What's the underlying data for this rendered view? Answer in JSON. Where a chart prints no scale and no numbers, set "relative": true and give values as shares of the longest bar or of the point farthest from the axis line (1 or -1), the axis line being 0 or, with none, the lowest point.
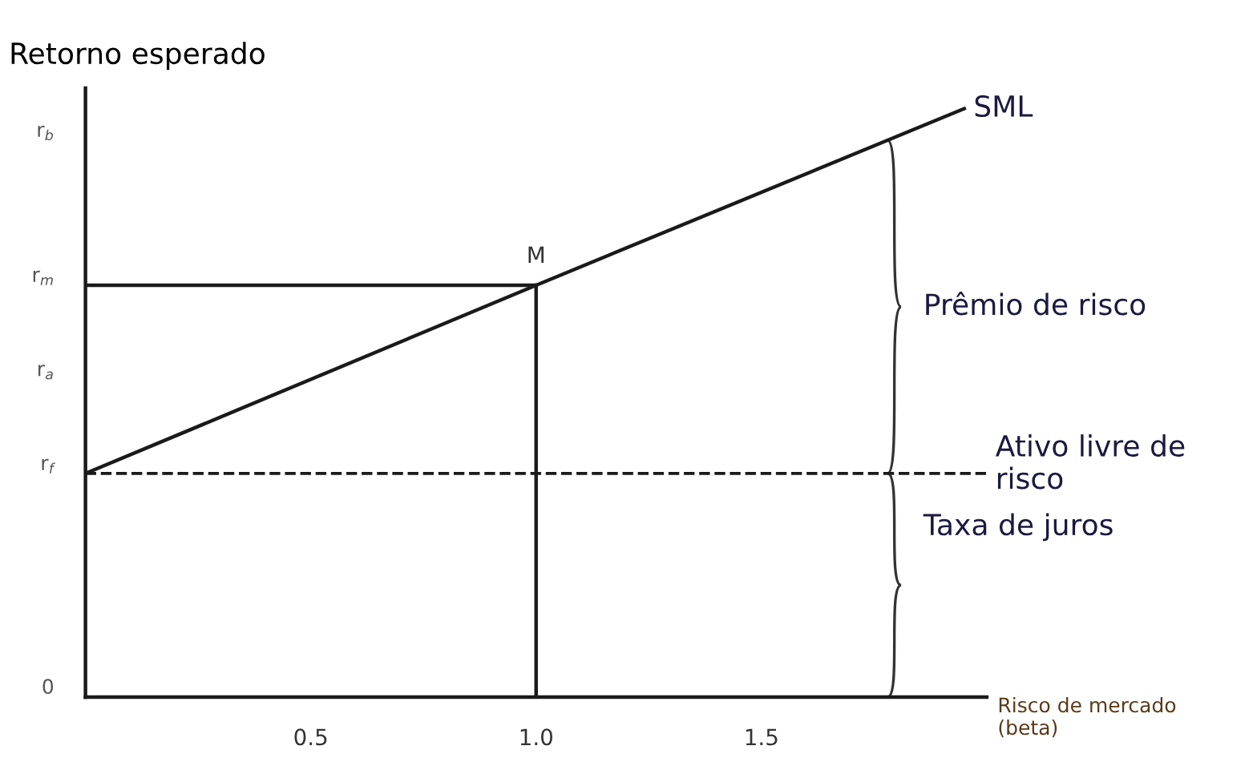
{
  "chart_data": {
    "type": "line",
    "relative": true,
    "xlabel": "Risco de mercado\n(beta)",
    "ylabel": "Retorno esperado",
    "xlim": [
      0,
      2.0
    ],
    "xticks": [
      {
        "value": 0.5,
        "label": "0.5"
      },
      {
        "value": 1.0,
        "label": "1.0"
      },
      {
        "value": 1.5,
        "label": "1.5"
      }
    ],
    "series": [
      {
        "name": "SML",
        "color": "#1a1a1a",
        "x": [
          0,
          1.0,
          1.95
        ],
        "values": [
          0.38,
          0.7,
          1.0
        ]
      },
      {
        "color": "#1a1a1a",
        "x": [
          0,
          1.0
        ],
        "values": [
          0.7,
          0.7
        ]
      },
      {
        "color": "#1a1a1a",
        "x": [
          1.0,
          1.0
        ],
        "values": [
          0,
          0.7
        ]
      }
    ],
    "ref_lines": [
      {
        "axis": "y",
        "value": 0.38,
        "color": "#1a1a1a",
        "line_style": "dashed"
      }
    ],
    "annotations": [
      {
        "text": "r$_{f}$",
        "x": 0,
        "y": 0.38
      },
      {
        "text": "r$_{m}$",
        "x": 0,
        "y": 0.7
      },
      {
        "text": "M",
        "x": 1.0,
        "y": 0.7
      },
      {
        "text": "Ativo livre de\nrisco",
        "x": 1.95,
        "y": 0.38
      },
      "0",
      "r$_{a}$",
      "r$_{b}$",
      "Prêmio de risco",
      "Taxa de juros"
    ],
    "grid": false,
    "legend": false,
    "marker": "none",
    "line_style": "solid"
  }
}
